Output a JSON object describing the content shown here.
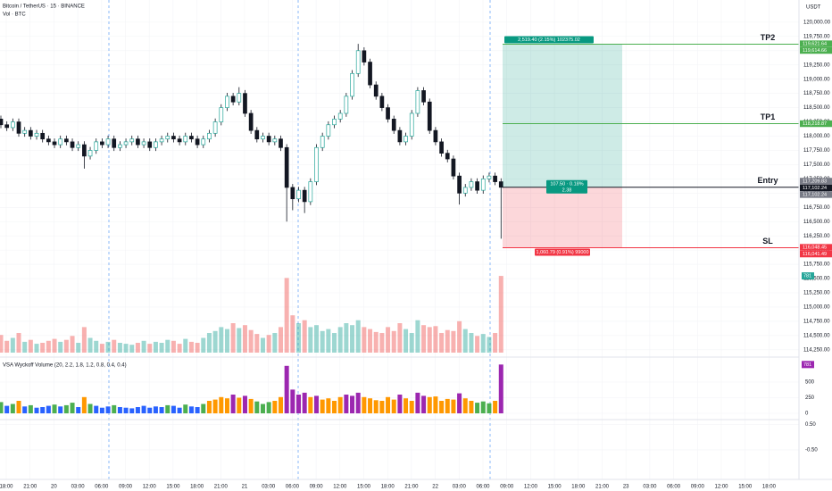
{
  "charts": [
    {
      "type": "candlestick",
      "title": "Bitcoin / TetherUS · 15 · BINANCE",
      "subtitle": "Vol · BTC",
      "axis_unit": "USDT",
      "up_color": "#26a69a",
      "down_color": "#ef5350",
      "open": [
        118300,
        118200,
        118150,
        118250,
        118050,
        118100,
        118000,
        118050,
        117950,
        117900,
        117850,
        117950,
        117900,
        117800,
        117850,
        117650,
        117750,
        117900,
        117850,
        117950,
        117800,
        117850,
        117900,
        117950,
        117850,
        117900,
        117800,
        117900,
        117950,
        118000,
        117950,
        117900,
        118000,
        117950,
        117850,
        117950,
        118050,
        118250,
        118500,
        118700,
        118600,
        118750,
        118400,
        118100,
        117950,
        118000,
        117900,
        117950,
        117800,
        117100,
        116900,
        117050,
        116850,
        117200,
        117800,
        118000,
        118200,
        118300,
        118400,
        118700,
        119100,
        119500,
        119300,
        118900,
        118700,
        118500,
        118300,
        118100,
        117900,
        118000,
        118400,
        118800,
        118600,
        118100,
        117900,
        117700,
        117600,
        117300,
        117000,
        117100,
        117200,
        117050,
        117250,
        117300,
        117200
      ],
      "high": [
        118360,
        118260,
        118310,
        118310,
        118160,
        118160,
        118110,
        118110,
        118010,
        117960,
        118010,
        118010,
        117960,
        117910,
        117910,
        117810,
        117960,
        117960,
        118010,
        118010,
        117910,
        117960,
        118010,
        118010,
        117960,
        117960,
        117960,
        118010,
        118060,
        118060,
        118010,
        118060,
        118060,
        118010,
        118010,
        118110,
        118310,
        118560,
        118760,
        118760,
        118860,
        118810,
        118460,
        118160,
        118060,
        118060,
        118010,
        118010,
        117860,
        117160,
        117110,
        117110,
        117260,
        117860,
        118060,
        118260,
        118360,
        118460,
        118760,
        119160,
        119620,
        119560,
        119360,
        118960,
        118760,
        118560,
        118360,
        118160,
        118060,
        118460,
        118860,
        118860,
        118660,
        118160,
        117960,
        117760,
        117660,
        117360,
        117160,
        117260,
        117260,
        117310,
        117360,
        117360,
        117260
      ],
      "low": [
        118140,
        118090,
        118090,
        117990,
        117990,
        117940,
        117940,
        117890,
        117840,
        117790,
        117790,
        117840,
        117740,
        117740,
        117430,
        117590,
        117690,
        117790,
        117790,
        117740,
        117740,
        117790,
        117840,
        117790,
        117790,
        117740,
        117740,
        117840,
        117890,
        117890,
        117840,
        117840,
        117890,
        117790,
        117790,
        117890,
        117990,
        118190,
        118440,
        118540,
        118540,
        118340,
        118040,
        117890,
        117890,
        117840,
        117840,
        117740,
        116500,
        116700,
        116840,
        116650,
        116790,
        117140,
        117740,
        117940,
        118140,
        118240,
        118340,
        118640,
        119040,
        119240,
        118840,
        118640,
        118440,
        118240,
        118040,
        117840,
        117840,
        117940,
        118340,
        118540,
        118040,
        117840,
        117640,
        117540,
        117240,
        116800,
        116940,
        117040,
        116990,
        116990,
        117190,
        117140,
        116200
      ],
      "close": [
        118200,
        118150,
        118250,
        118050,
        118100,
        118000,
        118050,
        117950,
        117900,
        117850,
        117950,
        117900,
        117800,
        117850,
        117650,
        117750,
        117900,
        117850,
        117950,
        117800,
        117850,
        117900,
        117950,
        117850,
        117900,
        117800,
        117900,
        117950,
        118000,
        117950,
        117900,
        118000,
        117950,
        117850,
        117950,
        118050,
        118250,
        118500,
        118700,
        118600,
        118750,
        118400,
        118100,
        117950,
        118000,
        117900,
        117950,
        117800,
        117100,
        116900,
        117050,
        116850,
        117200,
        117800,
        118000,
        118200,
        118300,
        118400,
        118700,
        119100,
        119500,
        119300,
        118900,
        118700,
        118500,
        118300,
        118100,
        117900,
        118000,
        118400,
        118800,
        118600,
        118100,
        117900,
        117700,
        117600,
        117300,
        117000,
        117100,
        117200,
        117050,
        117250,
        117300,
        117200,
        117102.24
      ],
      "volume": [
        180,
        120,
        150,
        200,
        110,
        130,
        90,
        100,
        120,
        140,
        110,
        130,
        170,
        100,
        260,
        150,
        120,
        90,
        110,
        130,
        100,
        90,
        80,
        100,
        120,
        90,
        110,
        100,
        130,
        120,
        90,
        140,
        110,
        100,
        150,
        200,
        220,
        260,
        240,
        300,
        250,
        280,
        230,
        190,
        150,
        180,
        200,
        260,
        760,
        380,
        300,
        330,
        260,
        280,
        220,
        240,
        200,
        260,
        300,
        280,
        330,
        260,
        240,
        210,
        200,
        260,
        220,
        300,
        240,
        200,
        330,
        280,
        260,
        270,
        200,
        230,
        220,
        320,
        240,
        200,
        170,
        190,
        160,
        200,
        781
      ],
      "volume_ylim": [
        0,
        3590
      ],
      "ylim": [
        114200,
        120390
      ],
      "yticks": [
        {
          "value": 120000,
          "label": "120,000.00"
        },
        {
          "value": 119750,
          "label": "119,750.00"
        },
        {
          "value": 119500,
          "label": "119,500.00"
        },
        {
          "value": 119250,
          "label": "119,250.00"
        },
        {
          "value": 119000,
          "label": "119,000.00"
        },
        {
          "value": 118750,
          "label": "118,750.00"
        },
        {
          "value": 118500,
          "label": "118,500.00"
        },
        {
          "value": 118250,
          "label": "118,250.00"
        },
        {
          "value": 118000,
          "label": "118,000.00"
        },
        {
          "value": 117750,
          "label": "117,750.00"
        },
        {
          "value": 117500,
          "label": "117,500.00"
        },
        {
          "value": 117250,
          "label": "117,250.00"
        },
        {
          "value": 117000,
          "label": "117,000.00"
        },
        {
          "value": 116750,
          "label": "116,750.00"
        },
        {
          "value": 116500,
          "label": "116,500.00"
        },
        {
          "value": 116250,
          "label": "116,250.00"
        },
        {
          "value": 116000,
          "label": "116,000.00"
        },
        {
          "value": 115750,
          "label": "115,750.00"
        },
        {
          "value": 115500,
          "label": "115,500.00"
        },
        {
          "value": 115250,
          "label": "115,250.00"
        },
        {
          "value": 115000,
          "label": "115,000.00"
        },
        {
          "value": 114750,
          "label": "114,750.00"
        },
        {
          "value": 114500,
          "label": "114,500.00"
        },
        {
          "value": 114250,
          "label": "114,250.00"
        }
      ],
      "grid": true,
      "time_labels": [
        "18:00",
        "21:00",
        "20",
        "03:00",
        "06:00",
        "09:00",
        "12:00",
        "15:00",
        "18:00",
        "21:00",
        "21",
        "03:00",
        "06:00",
        "09:00",
        "12:00",
        "15:00",
        "18:00",
        "21:00",
        "22",
        "03:00",
        "06:00",
        "09:00",
        "12:00",
        "15:00",
        "18:00",
        "21:00",
        "23",
        "03:00",
        "06:00",
        "09:00",
        "12:00",
        "15:00",
        "18:00"
      ],
      "levels": [
        {
          "name": "TP2",
          "value": 119614.66,
          "color": "#4caf50"
        },
        {
          "name": "TP1",
          "value": 118218.87,
          "color": "#4caf50"
        },
        {
          "name": "Entry",
          "value": 117102.24,
          "color": "#131722"
        },
        {
          "name": "SL",
          "value": 116041.49,
          "color": "#f23645"
        }
      ],
      "price_labels": [
        {
          "value": 119621.64,
          "label": "119,621.64",
          "color": "#4caf50"
        },
        {
          "value": 119614.66,
          "label": "119,614.66",
          "color": "#4caf50"
        },
        {
          "value": 118218.87,
          "label": "118,218.87",
          "color": "#4caf50"
        },
        {
          "value": 117209.83,
          "label": "117,209.83",
          "color": "#787b86"
        },
        {
          "value": 117102.24,
          "label": "117,102.24",
          "color": "#131722"
        },
        {
          "value": 117102.24,
          "label": "117,102.24",
          "color": "#787b86"
        },
        {
          "value": 116048.45,
          "label": "116,048.45",
          "color": "#f23645"
        },
        {
          "value": 116041.49,
          "label": "116,041.49",
          "color": "#f23645"
        }
      ],
      "position": {
        "target_label": "2,519.40 (2.15%) 102375.02",
        "center_label": "107.50 · 0.18%",
        "ratio_label": "2.38",
        "stop_label": "1,060.79 (0.91%) 99000"
      }
    },
    {
      "type": "bar",
      "title": "VSA Wyckoff Volume (20, 2.2, 1.8, 1.2, 0.8, 0.4, 0.4)",
      "values": [
        180,
        120,
        150,
        200,
        110,
        130,
        90,
        100,
        120,
        140,
        110,
        130,
        170,
        100,
        260,
        150,
        120,
        90,
        110,
        130,
        100,
        90,
        80,
        100,
        120,
        90,
        110,
        100,
        130,
        120,
        90,
        140,
        110,
        100,
        150,
        200,
        220,
        260,
        240,
        300,
        250,
        280,
        230,
        190,
        150,
        180,
        200,
        260,
        760,
        380,
        300,
        330,
        260,
        280,
        220,
        240,
        200,
        260,
        300,
        280,
        330,
        260,
        240,
        210,
        200,
        260,
        220,
        300,
        240,
        200,
        330,
        280,
        260,
        270,
        200,
        230,
        220,
        320,
        240,
        200,
        170,
        190,
        160,
        200,
        781
      ],
      "bar_colors": [
        "#4caf50",
        "#2962ff",
        "#4caf50",
        "#ff9800",
        "#2962ff",
        "#4caf50",
        "#2962ff",
        "#2962ff",
        "#2962ff",
        "#4caf50",
        "#2962ff",
        "#4caf50",
        "#4caf50",
        "#2962ff",
        "#ff9800",
        "#4caf50",
        "#2962ff",
        "#2962ff",
        "#2962ff",
        "#4caf50",
        "#2962ff",
        "#2962ff",
        "#2962ff",
        "#2962ff",
        "#2962ff",
        "#2962ff",
        "#2962ff",
        "#2962ff",
        "#4caf50",
        "#2962ff",
        "#2962ff",
        "#4caf50",
        "#2962ff",
        "#2962ff",
        "#4caf50",
        "#ff9800",
        "#ff9800",
        "#ff9800",
        "#ff9800",
        "#9c27b0",
        "#ff9800",
        "#9c27b0",
        "#ff9800",
        "#4caf50",
        "#4caf50",
        "#4caf50",
        "#ff9800",
        "#ff9800",
        "#9c27b0",
        "#9c27b0",
        "#9c27b0",
        "#9c27b0",
        "#ff9800",
        "#9c27b0",
        "#ff9800",
        "#ff9800",
        "#ff9800",
        "#ff9800",
        "#9c27b0",
        "#9c27b0",
        "#9c27b0",
        "#ff9800",
        "#ff9800",
        "#ff9800",
        "#ff9800",
        "#ff9800",
        "#ff9800",
        "#9c27b0",
        "#ff9800",
        "#ff9800",
        "#9c27b0",
        "#9c27b0",
        "#ff9800",
        "#ff9800",
        "#ff9800",
        "#ff9800",
        "#ff9800",
        "#9c27b0",
        "#ff9800",
        "#ff9800",
        "#4caf50",
        "#4caf50",
        "#4caf50",
        "#ff9800",
        "#9c27b0"
      ],
      "ylim": [
        -100,
        900
      ],
      "yticks": [
        0,
        250,
        500
      ]
    },
    {
      "type": "line",
      "ylim": [
        -1.6,
        0.7
      ],
      "yticks": [
        {
          "value": 0.5,
          "label": "0.50"
        },
        {
          "value": -0.5,
          "label": "-0.50"
        }
      ]
    }
  ]
}
